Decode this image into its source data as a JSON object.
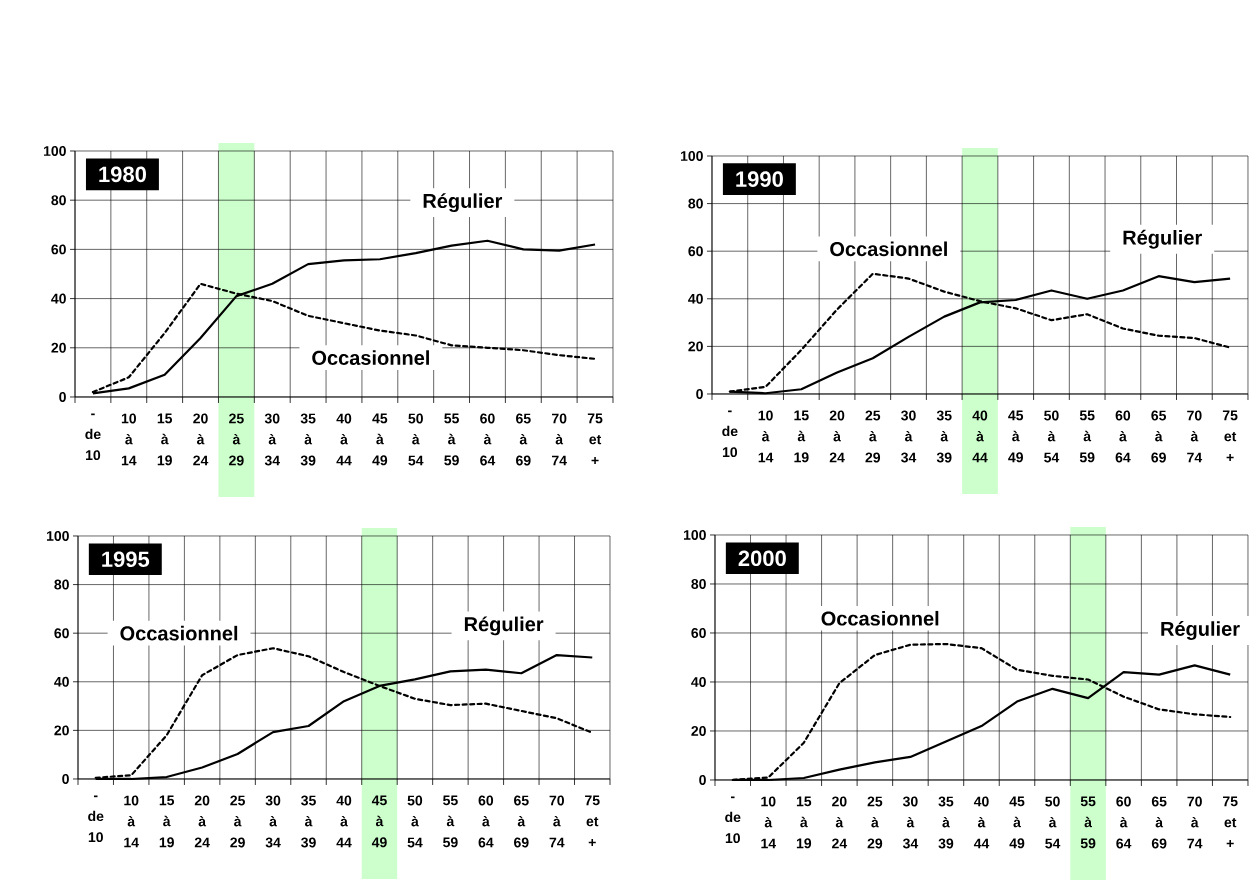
{
  "chart_data": [
    {
      "type": "line",
      "title": "1980",
      "categories": [
        "- de 10",
        "10 à 14",
        "15 à 19",
        "20 à 24",
        "25 à 29",
        "30 à 34",
        "35 à 39",
        "40 à 44",
        "45 à 49",
        "50 à 54",
        "55 à 59",
        "60 à 64",
        "65 à 69",
        "70 à 74",
        "75 et +"
      ],
      "series": [
        {
          "name": "Régulier",
          "color": "#000000",
          "line_style": "solid",
          "values": [
            1.5,
            3.5,
            9,
            24,
            41,
            46,
            54,
            55.5,
            56,
            58.5,
            61.5,
            63.5,
            60,
            59.5,
            62
          ]
        },
        {
          "name": "Occasionnel",
          "color": "#000000",
          "line_style": "dashed",
          "values": [
            2,
            8,
            26,
            46,
            42,
            39,
            33,
            30,
            27,
            25,
            21,
            20,
            19,
            17,
            15.5
          ]
        }
      ],
      "ylim": [
        0,
        100
      ],
      "yticks": [
        0,
        20,
        40,
        60,
        80,
        100
      ],
      "grid": true,
      "bands": [
        {
          "axis": "x",
          "from": "25 à 29",
          "to": "25 à 29",
          "color": "#ccffcc"
        }
      ]
    },
    {
      "type": "line",
      "title": "1990",
      "categories": [
        "- de 10",
        "10 à 14",
        "15 à 19",
        "20 à 24",
        "25 à 29",
        "30 à 34",
        "35 à 39",
        "40 à 44",
        "45 à 49",
        "50 à 54",
        "55 à 59",
        "60 à 64",
        "65 à 69",
        "70 à 74",
        "75 et +"
      ],
      "series": [
        {
          "name": "Régulier",
          "color": "#000000",
          "line_style": "solid",
          "values": [
            1,
            0.3,
            2,
            9,
            15,
            24,
            32.5,
            38.5,
            39.5,
            43.5,
            40,
            43.5,
            49.5,
            47,
            48.5
          ]
        },
        {
          "name": "Occasionnel",
          "color": "#000000",
          "line_style": "dashed",
          "values": [
            1,
            3,
            18.5,
            35.5,
            50.5,
            48.5,
            43,
            39,
            36,
            31,
            33.5,
            27.5,
            24.5,
            23.5,
            19.5
          ]
        }
      ],
      "ylim": [
        0,
        100
      ],
      "yticks": [
        0,
        20,
        40,
        60,
        80,
        100
      ],
      "grid": true,
      "bands": [
        {
          "axis": "x",
          "from": "40 à 44",
          "to": "40 à 44",
          "color": "#ccffcc"
        }
      ]
    },
    {
      "type": "line",
      "title": "1995",
      "categories": [
        "- de 10",
        "10 à 14",
        "15 à 19",
        "20 à 24",
        "25 à 29",
        "30 à 34",
        "35 à 39",
        "40 à 44",
        "45 à 49",
        "50 à 54",
        "55 à 59",
        "60 à 64",
        "65 à 69",
        "70 à 74",
        "75 et +"
      ],
      "series": [
        {
          "name": "Régulier",
          "color": "#000000",
          "line_style": "solid",
          "values": [
            0,
            0,
            0.8,
            4.7,
            10.3,
            19.3,
            21.8,
            32,
            38.3,
            41,
            44.3,
            45,
            43.5,
            51,
            50
          ]
        },
        {
          "name": "Occasionnel",
          "color": "#000000",
          "line_style": "dashed",
          "values": [
            0.5,
            1.5,
            18,
            42.7,
            51,
            53.8,
            50.5,
            44,
            38.3,
            33,
            30.4,
            31,
            28,
            25,
            19
          ]
        }
      ],
      "ylim": [
        0,
        100
      ],
      "yticks": [
        0,
        20,
        40,
        60,
        80,
        100
      ],
      "grid": true,
      "bands": [
        {
          "axis": "x",
          "from": "45 à 49",
          "to": "45 à 49",
          "color": "#ccffcc"
        }
      ]
    },
    {
      "type": "line",
      "title": "2000",
      "categories": [
        "- de 10",
        "10 à 14",
        "15 à 19",
        "20 à 24",
        "25 à 29",
        "30 à 34",
        "35 à 39",
        "40 à 44",
        "45 à 49",
        "50 à 54",
        "55 à 59",
        "60 à 64",
        "65 à 69",
        "70 à 74",
        "75 et +"
      ],
      "series": [
        {
          "name": "Régulier",
          "color": "#000000",
          "line_style": "solid",
          "values": [
            0,
            0,
            0.8,
            4.2,
            7.2,
            9.4,
            15.7,
            22,
            32,
            37.2,
            33.4,
            44,
            43,
            46.8,
            43
          ]
        },
        {
          "name": "Occasionnel",
          "color": "#000000",
          "line_style": "dashed",
          "values": [
            0,
            1,
            15.2,
            39.5,
            51,
            55.2,
            55.5,
            53.8,
            45,
            42.5,
            41,
            34,
            28.8,
            26.8,
            25.7
          ]
        }
      ],
      "ylim": [
        0,
        100
      ],
      "yticks": [
        0,
        20,
        40,
        60,
        80,
        100
      ],
      "grid": true,
      "bands": [
        {
          "axis": "x",
          "from": "55 à 59",
          "to": "55 à 59",
          "color": "#ccffcc"
        }
      ]
    }
  ]
}
